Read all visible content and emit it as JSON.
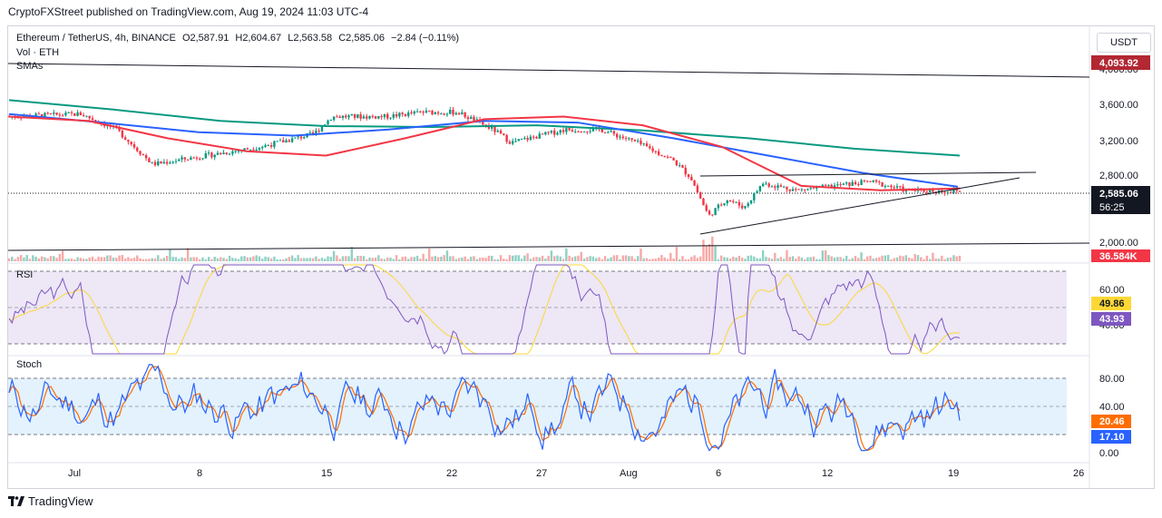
{
  "publisher_line": "CryptoFXStreet published on TradingView.com, Aug 19, 2024 11:03 UTC-4",
  "header": {
    "symbol": "Ethereum / TetherUS, 4h, BINANCE",
    "open": "O2,587.91",
    "high": "H2,604.67",
    "low": "L2,563.58",
    "close": "C2,585.06",
    "change": "−2.84 (−0.11%)",
    "vol_label": "Vol · ETH",
    "smas_label": "SMAs"
  },
  "currency_button": "USDT",
  "colors": {
    "up": "#089981",
    "down": "#f23645",
    "sma_red": "#f23645",
    "sma_blue": "#2962ff",
    "sma_green": "#089981",
    "rsi_line": "#7e57c2",
    "rsi_ma": "#fdd835",
    "rsi_band": "#ede7f6",
    "stoch_k": "#2962ff",
    "stoch_d": "#ff6d00",
    "stoch_band": "#e3f2fd",
    "price_tag": "#131722",
    "top_tag": "#b22833"
  },
  "price_axis": {
    "ticks": [
      "4,000.00",
      "3,600.00",
      "3,200.00",
      "2,800.00",
      "2,000.00"
    ],
    "top_label": "4,093.92",
    "last_price": "2,585.06",
    "countdown": "56:25",
    "volume_label": "36.584K"
  },
  "rsi_pane": {
    "title": "RSI",
    "ticks": [
      "60.00",
      "40.00"
    ],
    "ma_value": "49.86",
    "rsi_value": "43.93"
  },
  "stoch_pane": {
    "title": "Stoch",
    "ticks": [
      "80.00",
      "40.00",
      "0.00"
    ],
    "d_value": "20.46",
    "k_value": "17.10"
  },
  "time_axis": [
    "Jul",
    "8",
    "15",
    "22",
    "27",
    "Aug",
    "6",
    "12",
    "19",
    "26"
  ],
  "footer_brand": "TradingView",
  "chart_data": {
    "type": "candlestick",
    "title": "Ethereum / TetherUS, 4h, BINANCE",
    "interval": "4h",
    "x_range": [
      "2024-06-27",
      "2024-08-19"
    ],
    "price_range": [
      2000,
      4093.92
    ],
    "last_price": 2585.06,
    "close_approx": [
      {
        "date": "2024-06-27",
        "price": 3450
      },
      {
        "date": "2024-07-01",
        "price": 3480
      },
      {
        "date": "2024-07-03",
        "price": 3300
      },
      {
        "date": "2024-07-05",
        "price": 2900
      },
      {
        "date": "2024-07-08",
        "price": 3000
      },
      {
        "date": "2024-07-11",
        "price": 3100
      },
      {
        "date": "2024-07-14",
        "price": 3250
      },
      {
        "date": "2024-07-15",
        "price": 3450
      },
      {
        "date": "2024-07-18",
        "price": 3450
      },
      {
        "date": "2024-07-20",
        "price": 3500
      },
      {
        "date": "2024-07-22",
        "price": 3500
      },
      {
        "date": "2024-07-24",
        "price": 3300
      },
      {
        "date": "2024-07-25",
        "price": 3150
      },
      {
        "date": "2024-07-28",
        "price": 3300
      },
      {
        "date": "2024-07-30",
        "price": 3300
      },
      {
        "date": "2024-08-01",
        "price": 3150
      },
      {
        "date": "2024-08-03",
        "price": 2950
      },
      {
        "date": "2024-08-04",
        "price": 2750
      },
      {
        "date": "2024-08-05",
        "price": 2300
      },
      {
        "date": "2024-08-06",
        "price": 2500
      },
      {
        "date": "2024-08-07",
        "price": 2400
      },
      {
        "date": "2024-08-08",
        "price": 2680
      },
      {
        "date": "2024-08-10",
        "price": 2600
      },
      {
        "date": "2024-08-12",
        "price": 2650
      },
      {
        "date": "2024-08-14",
        "price": 2700
      },
      {
        "date": "2024-08-16",
        "price": 2600
      },
      {
        "date": "2024-08-19",
        "price": 2585
      }
    ],
    "sma_series": [
      {
        "color": "red",
        "values": [
          3450,
          3400,
          3200,
          3050,
          3000,
          3200,
          3420,
          3450,
          3350,
          3100,
          2650,
          2600,
          2620
        ]
      },
      {
        "color": "blue",
        "values": [
          3480,
          3380,
          3270,
          3230,
          3300,
          3400,
          3380,
          3200,
          3000,
          2800,
          2640
        ]
      },
      {
        "color": "green",
        "values": [
          3640,
          3530,
          3400,
          3340,
          3330,
          3350,
          3290,
          3200,
          3080,
          3000
        ]
      }
    ],
    "trendlines": [
      {
        "name": "triangle-upper",
        "from": {
          "date": "2024-08-05",
          "price": 2810
        },
        "to": {
          "date": "2024-08-23",
          "price": 2810
        }
      },
      {
        "name": "triangle-lower",
        "from": {
          "date": "2024-08-05",
          "price": 2100
        },
        "to": {
          "date": "2024-08-23",
          "price": 2780
        }
      },
      {
        "name": "top-resistance",
        "from": {
          "date": "2024-06-27",
          "price": 4093.92
        },
        "to": {
          "date": "2024-08-29",
          "price": 3950
        }
      },
      {
        "name": "bottom-support",
        "from": {
          "date": "2024-06-27",
          "price": 1940
        },
        "to": {
          "date": "2024-08-29",
          "price": 2010
        }
      }
    ],
    "volume_last": "36.584K",
    "rsi": {
      "value": 43.93,
      "ma": 49.86,
      "band": [
        40,
        70
      ]
    },
    "stochastic": {
      "k": 17.1,
      "d": 20.46,
      "band": [
        20,
        80
      ]
    }
  }
}
